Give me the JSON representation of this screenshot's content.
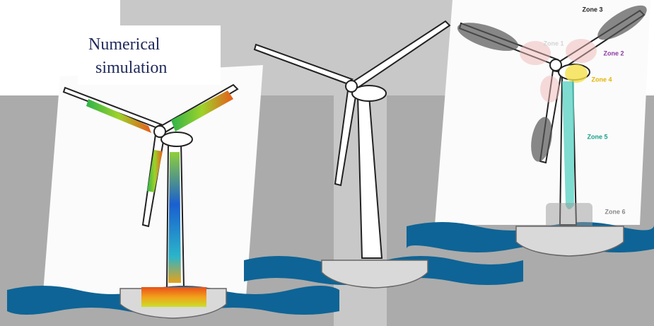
{
  "heading": {
    "lines": [
      "Numerical",
      "simulation"
    ]
  },
  "zones": [
    "Zone 1",
    "Zone 2",
    "Zone 3",
    "Zone 4",
    "Zone 5",
    "Zone 6"
  ]
}
